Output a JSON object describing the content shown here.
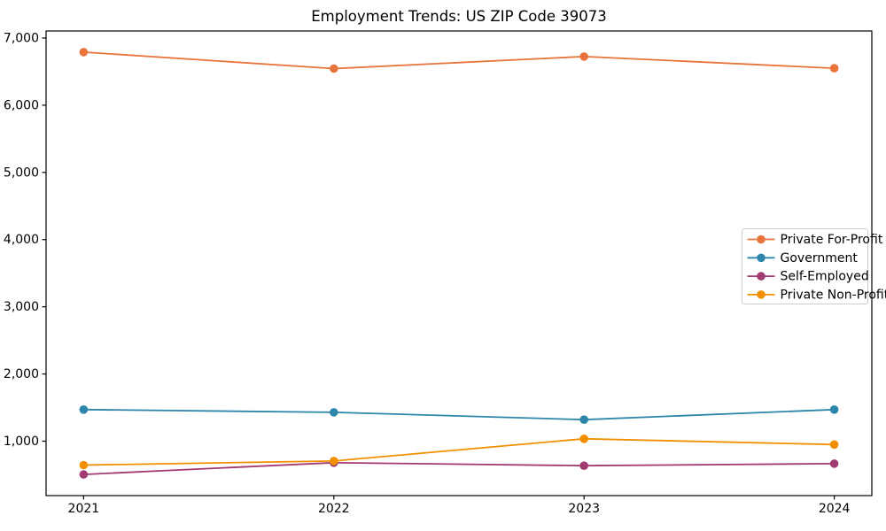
{
  "chart_data": {
    "type": "line",
    "title": "Employment Trends: US ZIP Code 39073",
    "xlabel": "",
    "ylabel": "",
    "x": [
      2021,
      2022,
      2023,
      2024
    ],
    "x_tick_labels": [
      "2021",
      "2022",
      "2023",
      "2024"
    ],
    "series": [
      {
        "name": "Private For-Profit",
        "color": "#E8743B",
        "values": [
          6790,
          6545,
          6725,
          6550
        ]
      },
      {
        "name": "Government",
        "color": "#2E86AB",
        "values": [
          1470,
          1430,
          1320,
          1470
        ]
      },
      {
        "name": "Self-Employed",
        "color": "#A23B72",
        "values": [
          505,
          680,
          635,
          665
        ]
      },
      {
        "name": "Private Non-Profit",
        "color": "#F18F01",
        "values": [
          645,
          705,
          1035,
          950
        ]
      }
    ],
    "yticks": [
      1000,
      2000,
      3000,
      4000,
      5000,
      6000,
      7000
    ],
    "ytick_labels": [
      "1,000",
      "2,000",
      "3,000",
      "4,000",
      "5,000",
      "6,000",
      "7,000"
    ],
    "xlim": [
      2020.85,
      2024.15
    ],
    "ylim": [
      190,
      7105
    ],
    "grid": false,
    "marker": "circle",
    "legend_position": "center right",
    "colors": {
      "spine": "#000000",
      "tick_text": "#000000",
      "legend_border": "#cccccc",
      "background": "#ffffff"
    }
  }
}
